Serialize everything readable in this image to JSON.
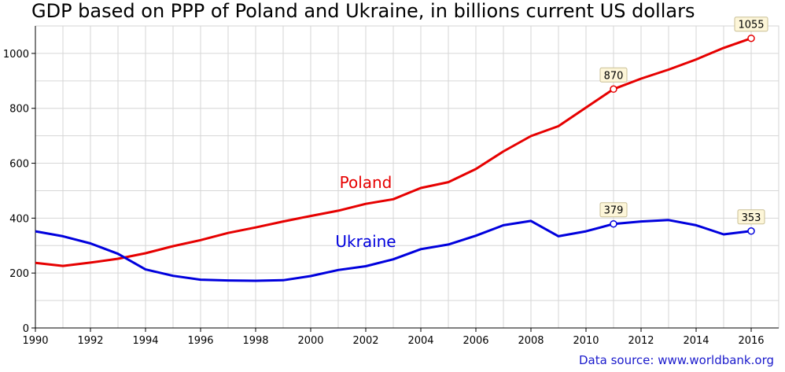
{
  "chart_data": {
    "type": "line",
    "title": "GDP based on PPP of Poland and Ukraine, in billions current US dollars",
    "xlabel": "",
    "ylabel": "",
    "xlim": [
      1990,
      2017
    ],
    "ylim": [
      0,
      1100
    ],
    "x_ticks": [
      1990,
      1992,
      1994,
      1996,
      1998,
      2000,
      2002,
      2004,
      2006,
      2008,
      2010,
      2012,
      2014,
      2016
    ],
    "y_ticks": [
      0,
      200,
      400,
      600,
      800,
      1000
    ],
    "grid": true,
    "x": [
      1990,
      1991,
      1992,
      1993,
      1994,
      1995,
      1996,
      1997,
      1998,
      1999,
      2000,
      2001,
      2002,
      2003,
      2004,
      2005,
      2006,
      2007,
      2008,
      2009,
      2010,
      2011,
      2012,
      2013,
      2014,
      2015,
      2016
    ],
    "series": [
      {
        "name": "Poland",
        "color": "#e60000",
        "values": [
          237,
          226,
          238,
          252,
          272,
          298,
          320,
          346,
          366,
          388,
          408,
          427,
          452,
          469,
          510,
          531,
          579,
          643,
          699,
          735,
          803,
          870,
          908,
          941,
          978,
          1020,
          1055
        ],
        "annotations": [
          {
            "x": 2011,
            "label": "870"
          },
          {
            "x": 2016,
            "label": "1055"
          }
        ]
      },
      {
        "name": "Ukraine",
        "color": "#0000dd",
        "values": [
          352,
          334,
          308,
          270,
          213,
          190,
          176,
          173,
          172,
          174,
          189,
          211,
          225,
          250,
          287,
          304,
          336,
          374,
          390,
          334,
          352,
          379,
          388,
          393,
          374,
          341,
          353
        ],
        "annotations": [
          {
            "x": 2011,
            "label": "379"
          },
          {
            "x": 2016,
            "label": "353"
          }
        ]
      }
    ],
    "source": "Data source: www.worldbank.org"
  }
}
